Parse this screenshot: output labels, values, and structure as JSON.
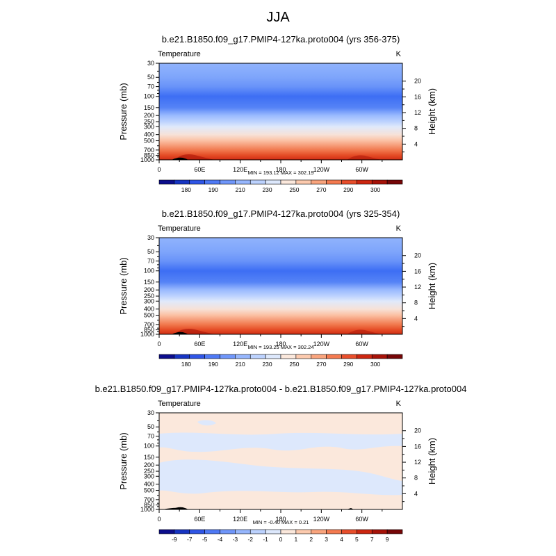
{
  "page_title": "JJA",
  "chart_data": [
    {
      "type": "heatmap",
      "title": "b.e21.B1850.f09_g17.PMIP4-127ka.proto004 (yrs 356-375)",
      "left_label": "Temperature",
      "units": "K",
      "ylabel": "Pressure (mb)",
      "ylabel_right": "Height (km)",
      "x_ticks": [
        "0",
        "60E",
        "120E",
        "180",
        "120W",
        "60W"
      ],
      "y_ticks": [
        "30",
        "50",
        "70",
        "100",
        "150",
        "200",
        "250",
        "300",
        "400",
        "500",
        "700",
        "850",
        "1000"
      ],
      "y_ticks_right": [
        "20",
        "16",
        "12",
        "8",
        "4"
      ],
      "stats": "MIN = 193.12   MAX = 302.19",
      "colorbar_labels": [
        "180",
        "190",
        "210",
        "230",
        "250",
        "270",
        "290",
        "300"
      ],
      "colorbar_colors": [
        "#0c0d8c",
        "#1634c2",
        "#2f55e6",
        "#4e79f5",
        "#6f96fa",
        "#96b6fd",
        "#bcd2fe",
        "#dde8fc",
        "#fbe8dc",
        "#fccaae",
        "#f9a47d",
        "#f47a50",
        "#e84e2b",
        "#cc2610",
        "#a61208",
        "#760607"
      ],
      "pressure_profile_mb": [
        {
          "p": 30,
          "value": 213
        },
        {
          "p": 50,
          "value": 210
        },
        {
          "p": 70,
          "value": 207
        },
        {
          "p": 100,
          "value": 200
        },
        {
          "p": 150,
          "value": 204
        },
        {
          "p": 200,
          "value": 216
        },
        {
          "p": 250,
          "value": 226
        },
        {
          "p": 300,
          "value": 236
        },
        {
          "p": 400,
          "value": 250
        },
        {
          "p": 500,
          "value": 259
        },
        {
          "p": 700,
          "value": 275
        },
        {
          "p": 850,
          "value": 286
        },
        {
          "p": 1000,
          "value": 296
        }
      ]
    },
    {
      "type": "heatmap",
      "title": "b.e21.B1850.f09_g17.PMIP4-127ka.proto004 (yrs 325-354)",
      "left_label": "Temperature",
      "units": "K",
      "ylabel": "Pressure (mb)",
      "ylabel_right": "Height (km)",
      "x_ticks": [
        "0",
        "60E",
        "120E",
        "180",
        "120W",
        "60W"
      ],
      "y_ticks": [
        "30",
        "50",
        "70",
        "100",
        "150",
        "200",
        "250",
        "300",
        "400",
        "500",
        "700",
        "850",
        "1000"
      ],
      "y_ticks_right": [
        "20",
        "16",
        "12",
        "8",
        "4"
      ],
      "stats": "MIN = 193.25   MAX = 302.24",
      "colorbar_labels": [
        "180",
        "190",
        "210",
        "230",
        "250",
        "270",
        "290",
        "300"
      ],
      "colorbar_colors": [
        "#0c0d8c",
        "#1634c2",
        "#2f55e6",
        "#4e79f5",
        "#6f96fa",
        "#96b6fd",
        "#bcd2fe",
        "#dde8fc",
        "#fbe8dc",
        "#fccaae",
        "#f9a47d",
        "#f47a50",
        "#e84e2b",
        "#cc2610",
        "#a61208",
        "#760607"
      ],
      "pressure_profile_mb": [
        {
          "p": 30,
          "value": 213
        },
        {
          "p": 50,
          "value": 210
        },
        {
          "p": 70,
          "value": 207
        },
        {
          "p": 100,
          "value": 200
        },
        {
          "p": 150,
          "value": 204
        },
        {
          "p": 200,
          "value": 216
        },
        {
          "p": 250,
          "value": 226
        },
        {
          "p": 300,
          "value": 236
        },
        {
          "p": 400,
          "value": 250
        },
        {
          "p": 500,
          "value": 259
        },
        {
          "p": 700,
          "value": 275
        },
        {
          "p": 850,
          "value": 286
        },
        {
          "p": 1000,
          "value": 296
        }
      ]
    },
    {
      "type": "heatmap",
      "title": "b.e21.B1850.f09_g17.PMIP4-127ka.proto004 - b.e21.B1850.f09_g17.PMIP4-127ka.proto004",
      "left_label": "Temperature",
      "units": "K",
      "ylabel": "Pressure (mb)",
      "ylabel_right": "Height (km)",
      "x_ticks": [
        "0",
        "60E",
        "120E",
        "180",
        "120W",
        "60W"
      ],
      "y_ticks": [
        "30",
        "50",
        "70",
        "100",
        "150",
        "200",
        "250",
        "300",
        "400",
        "500",
        "700",
        "850",
        "1000"
      ],
      "y_ticks_right": [
        "20",
        "16",
        "12",
        "8",
        "4"
      ],
      "stats": "MIN =  -0.40   MAX =   0.21",
      "colorbar_labels": [
        "-9",
        "-7",
        "-5",
        "-4",
        "-3",
        "-2",
        "-1",
        "0",
        "1",
        "2",
        "3",
        "4",
        "5",
        "7",
        "9"
      ],
      "colorbar_colors": [
        "#0c0d8c",
        "#1634c2",
        "#2f55e6",
        "#4e79f5",
        "#6f96fa",
        "#96b6fd",
        "#bcd2fe",
        "#dde8fc",
        "#fbe8dc",
        "#fccaae",
        "#f9a47d",
        "#f47a50",
        "#e84e2b",
        "#cc2610",
        "#a61208",
        "#760607"
      ],
      "difference_fill_colors": {
        "negative": "#dde8fc",
        "positive": "#fbe8dc"
      }
    }
  ]
}
